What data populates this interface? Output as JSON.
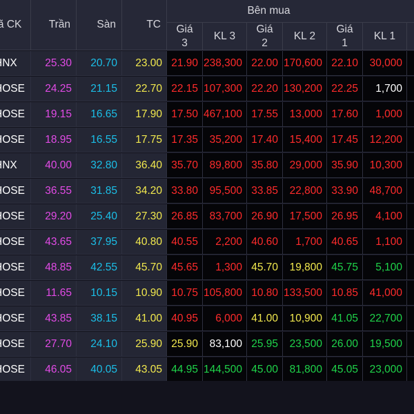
{
  "header": {
    "symbol": "Mã CK",
    "ceiling": "Trần",
    "floor": "Sàn",
    "ref": "TC",
    "buy_group": "Bên mua",
    "bid3_price": "Giá\n3",
    "bid3_vol": "KL 3",
    "bid2_price": "Giá\n2",
    "bid2_vol": "KL 2",
    "bid1_price": "Giá\n1",
    "bid1_vol": "KL 1"
  },
  "colors": {
    "ceiling": "#e24be6",
    "floor": "#1bbfe8",
    "reference": "#f2e94e",
    "down": "#ff2b2b",
    "up": "#1fd44a",
    "highlight_red": "#d4163a",
    "highlight_orange": "#d99a0c"
  },
  "rows": [
    {
      "exchange": "HNX",
      "ceil": "25.30",
      "floor": "20.70",
      "ref": "23.00",
      "p3": "21.90",
      "v3": "238,300",
      "p2": "22.00",
      "v2": "170,600",
      "p1": "22.10",
      "v1": "30,000",
      "c3": "down",
      "c2": "down",
      "c1": "down",
      "hl": ""
    },
    {
      "exchange": "HOSE",
      "ceil": "24.25",
      "floor": "21.15",
      "ref": "22.70",
      "p3": "22.15",
      "v3": "107,300",
      "p2": "22.20",
      "v2": "130,200",
      "p1": "22.25",
      "v1": "1,700",
      "c3": "down",
      "c2": "down",
      "c1": "down",
      "hl": "v1"
    },
    {
      "exchange": "HOSE",
      "ceil": "19.15",
      "floor": "16.65",
      "ref": "17.90",
      "p3": "17.50",
      "v3": "467,100",
      "p2": "17.55",
      "v2": "13,000",
      "p1": "17.60",
      "v1": "1,000",
      "c3": "down",
      "c2": "down",
      "c1": "down",
      "hl": ""
    },
    {
      "exchange": "HOSE",
      "ceil": "18.95",
      "floor": "16.55",
      "ref": "17.75",
      "p3": "17.35",
      "v3": "35,200",
      "p2": "17.40",
      "v2": "15,400",
      "p1": "17.45",
      "v1": "12,200",
      "c3": "down",
      "c2": "down",
      "c1": "down",
      "hl": ""
    },
    {
      "exchange": "HNX",
      "ceil": "40.00",
      "floor": "32.80",
      "ref": "36.40",
      "p3": "35.70",
      "v3": "89,800",
      "p2": "35.80",
      "v2": "29,000",
      "p1": "35.90",
      "v1": "10,300",
      "c3": "down",
      "c2": "down",
      "c1": "down",
      "hl": ""
    },
    {
      "exchange": "HOSE",
      "ceil": "36.55",
      "floor": "31.85",
      "ref": "34.20",
      "p3": "33.80",
      "v3": "95,500",
      "p2": "33.85",
      "v2": "22,800",
      "p1": "33.90",
      "v1": "48,700",
      "c3": "down",
      "c2": "down",
      "c1": "down",
      "hl": ""
    },
    {
      "exchange": "HOSE",
      "ceil": "29.20",
      "floor": "25.40",
      "ref": "27.30",
      "p3": "26.85",
      "v3": "83,700",
      "p2": "26.90",
      "v2": "17,500",
      "p1": "26.95",
      "v1": "4,100",
      "c3": "down",
      "c2": "down",
      "c1": "down",
      "hl": ""
    },
    {
      "exchange": "HOSE",
      "ceil": "43.65",
      "floor": "37.95",
      "ref": "40.80",
      "p3": "40.55",
      "v3": "2,200",
      "p2": "40.60",
      "v2": "1,700",
      "p1": "40.65",
      "v1": "1,100",
      "c3": "down",
      "c2": "down",
      "c1": "down",
      "hl": ""
    },
    {
      "exchange": "HOSE",
      "ceil": "48.85",
      "floor": "42.55",
      "ref": "45.70",
      "p3": "45.65",
      "v3": "1,300",
      "p2": "45.70",
      "v2": "19,800",
      "p1": "45.75",
      "v1": "5,100",
      "c3": "down",
      "c2": "ref",
      "c1": "up",
      "hl": ""
    },
    {
      "exchange": "HOSE",
      "ceil": "11.65",
      "floor": "10.15",
      "ref": "10.90",
      "p3": "10.75",
      "v3": "105,800",
      "p2": "10.80",
      "v2": "133,500",
      "p1": "10.85",
      "v1": "41,000",
      "c3": "down",
      "c2": "down",
      "c1": "down",
      "hl": ""
    },
    {
      "exchange": "HOSE",
      "ceil": "43.85",
      "floor": "38.15",
      "ref": "41.00",
      "p3": "40.95",
      "v3": "6,000",
      "p2": "41.00",
      "v2": "10,900",
      "p1": "41.05",
      "v1": "22,700",
      "c3": "down",
      "c2": "ref",
      "c1": "up",
      "hl": ""
    },
    {
      "exchange": "HOSE",
      "ceil": "27.70",
      "floor": "24.10",
      "ref": "25.90",
      "p3": "25.90",
      "v3": "83,100",
      "p2": "25.95",
      "v2": "23,500",
      "p1": "26.00",
      "v1": "19,500",
      "c3": "ref",
      "c2": "up",
      "c1": "up",
      "hl": "v3"
    },
    {
      "exchange": "HOSE",
      "ceil": "46.05",
      "floor": "40.05",
      "ref": "43.05",
      "p3": "44.95",
      "v3": "144,500",
      "p2": "45.00",
      "v2": "81,800",
      "p1": "45.05",
      "v1": "23,000",
      "c3": "up",
      "c2": "up",
      "c1": "up",
      "hl": ""
    }
  ]
}
